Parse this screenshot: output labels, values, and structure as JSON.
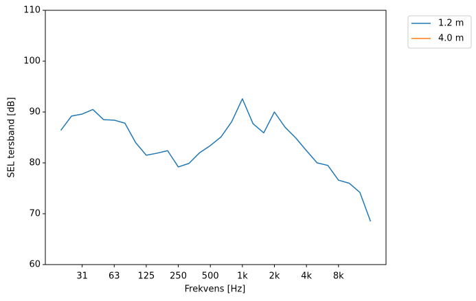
{
  "chart_data": {
    "type": "line",
    "xlabel": "Frekvens [Hz]",
    "ylabel": "SEL tersband [dB]",
    "categories": [
      null,
      null,
      "31",
      null,
      null,
      "63",
      null,
      null,
      "125",
      null,
      null,
      "250",
      null,
      null,
      "500",
      null,
      null,
      "1k",
      null,
      null,
      "2k",
      null,
      null,
      "4k",
      null,
      null,
      "8k",
      null,
      null,
      null
    ],
    "series": [
      {
        "name": "1.2 m",
        "color": "#1f77b4",
        "values": [
          86.4,
          89.2,
          89.6,
          90.5,
          88.5,
          88.4,
          87.8,
          84.0,
          81.5,
          81.9,
          82.4,
          79.2,
          79.9,
          82.0,
          83.4,
          85.1,
          88.1,
          92.6,
          87.7,
          85.9,
          90.0,
          87.0,
          84.9,
          82.4,
          80.0,
          79.5,
          76.6,
          76.0,
          74.2,
          68.5
        ]
      },
      {
        "name": "4.0 m",
        "color": "#ff7f0e",
        "values": [
          null,
          null,
          null,
          null,
          null,
          null,
          null,
          null,
          null,
          null,
          null,
          null,
          null,
          null,
          null,
          null,
          null,
          null,
          null,
          null,
          null,
          null,
          null,
          null,
          null,
          null,
          null,
          null,
          null,
          null
        ]
      }
    ],
    "ylim": [
      60,
      110
    ],
    "yticks": [
      60,
      70,
      80,
      90,
      100,
      110
    ],
    "legend": "outside upper right",
    "grid": false
  }
}
